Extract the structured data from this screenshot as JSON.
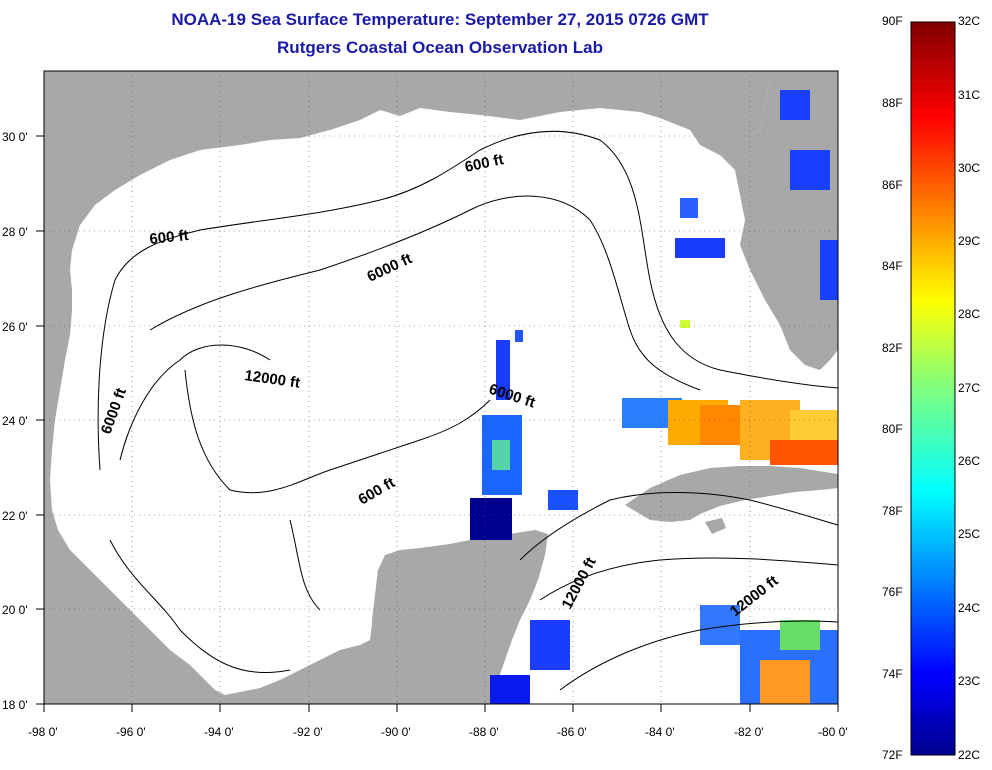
{
  "header": {
    "title": "NOAA-19 Sea Surface Temperature:  September 27, 2015 0726 GMT",
    "subtitle": "Rutgers Coastal Ocean Observation Lab"
  },
  "axes": {
    "x_ticks": [
      "-98 0'",
      "-96 0'",
      "-94 0'",
      "-92 0'",
      "-90 0'",
      "-88 0'",
      "-86 0'",
      "-84 0'",
      "-82 0'",
      "-80 0'"
    ],
    "y_ticks": [
      "18 0'",
      "20 0'",
      "22 0'",
      "24 0'",
      "26 0'",
      "28 0'",
      "30 0'"
    ]
  },
  "contours": {
    "labels": [
      "600 ft",
      "600 ft",
      "600 ft",
      "6000 ft",
      "6000 ft",
      "6000 ft",
      "12000 ft",
      "12000 ft",
      "12000 ft"
    ]
  },
  "colorbar": {
    "f_labels": [
      "90F",
      "88F",
      "86F",
      "84F",
      "82F",
      "80F",
      "78F",
      "76F",
      "74F",
      "72F"
    ],
    "c_labels": [
      "32C",
      "31C",
      "30C",
      "29C",
      "28C",
      "27C",
      "26C",
      "25C",
      "24C",
      "23C",
      "22C"
    ]
  },
  "colors": {
    "land": "#a8a8a8",
    "ocean": "#ffffff",
    "title": "#1a1aa8"
  }
}
